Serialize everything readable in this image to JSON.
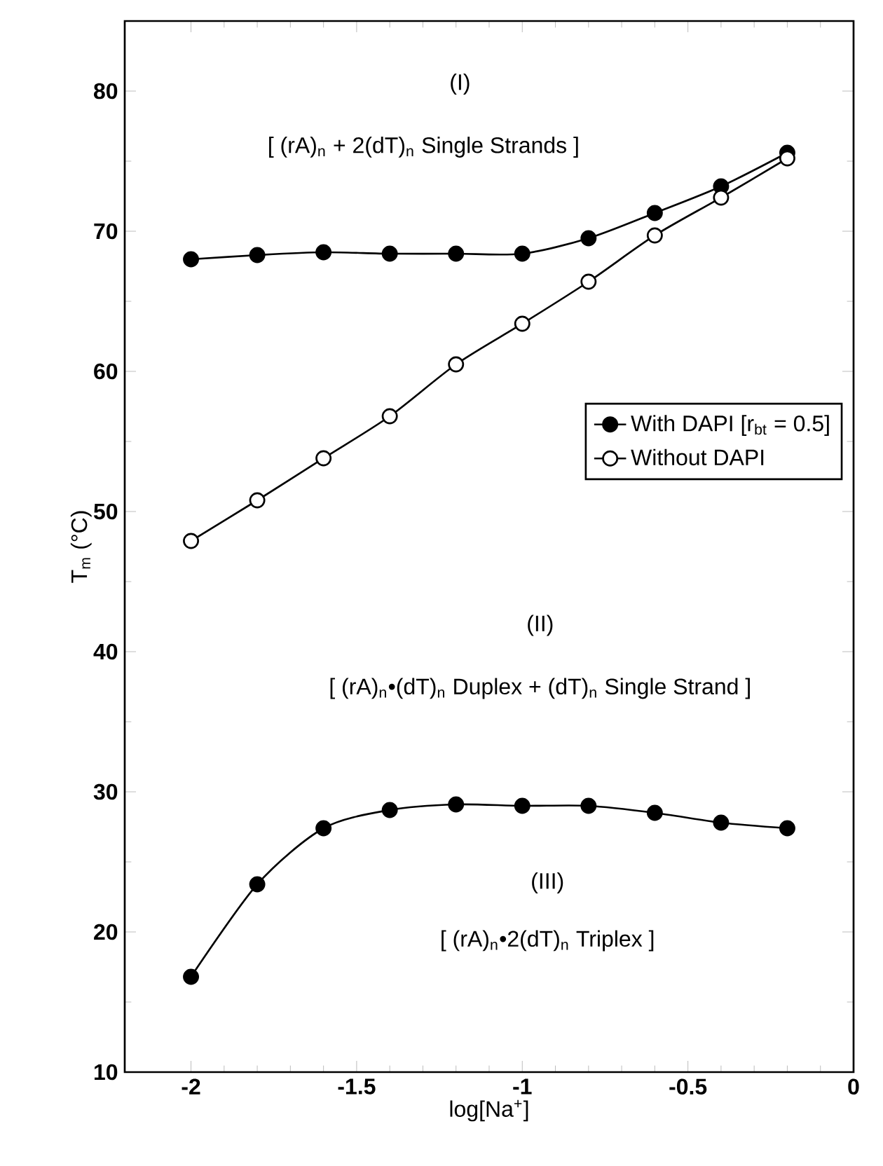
{
  "chart_data": {
    "type": "line",
    "xlabel": "log[Na$^{+}$]",
    "ylabel": "T$_{m}$ (°C)",
    "annotations": [
      "(I)",
      "[ (rA)$_{n}$ + 2(dT)$_{n}$ Single Strands ]",
      "(II)",
      "[ (rA)$_{n}$•(dT)$_{n}$ Duplex + (dT)$_{n}$ Single Strand ]",
      "(III)",
      "[ (rA)$_{n}$•2(dT)$_{n}$ Triplex ]"
    ],
    "x": [
      -2,
      -1.8,
      -1.6,
      -1.4,
      -1.2,
      -1,
      -0.8,
      -0.6,
      -0.4,
      -0.2
    ],
    "series": [
      {
        "name": "With DAPI [r$_{bt}$ = 0.5]",
        "color": "#000000",
        "values": [
          68.0,
          68.3,
          68.5,
          68.4,
          68.4,
          68.4,
          69.5,
          71.3,
          73.2,
          75.6
        ]
      },
      {
        "name": "Without DAPI",
        "color": "#000000",
        "values": [
          47.9,
          50.8,
          53.8,
          56.8,
          60.5,
          63.4,
          66.4,
          69.7,
          72.4,
          75.2
        ]
      },
      {
        "color": "#000000",
        "values": [
          16.8,
          23.4,
          27.4,
          28.7,
          29.1,
          29.0,
          29.0,
          28.5,
          27.8,
          27.4
        ]
      }
    ],
    "xlim": [
      -2.2,
      0
    ],
    "ylim": [
      10,
      85
    ],
    "xticks": [
      -2,
      -1.5,
      -1,
      -0.5,
      0
    ],
    "yticks": [
      10,
      20,
      30,
      40,
      50,
      60,
      70,
      80
    ],
    "grid": false,
    "legend": "right",
    "marker": "circle",
    "line_style": "solid"
  }
}
